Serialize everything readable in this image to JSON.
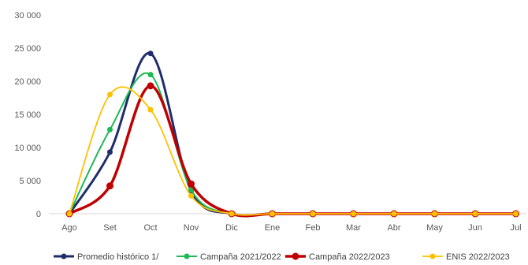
{
  "chart_data": {
    "type": "line",
    "categories": [
      "Ago",
      "Set",
      "Oct",
      "Nov",
      "Dic",
      "Ene",
      "Feb",
      "Mar",
      "Abr",
      "May",
      "Jun",
      "Jul"
    ],
    "ylim": [
      0,
      30000
    ],
    "yticks": [
      0,
      5000,
      10000,
      15000,
      20000,
      25000,
      30000
    ],
    "ytick_labels": [
      "0",
      "5 000",
      "10 000",
      "15 000",
      "20 000",
      "25 000",
      "30 000"
    ],
    "grid": false,
    "legend_position": "bottom",
    "series": [
      {
        "name": "Promedio histórico 1/",
        "color": "#1f2d6b",
        "values": [
          0,
          9300,
          24200,
          3500,
          0,
          0,
          0,
          0,
          0,
          0,
          0,
          0
        ]
      },
      {
        "name": "Campaña 2021/2022",
        "color": "#1db954",
        "values": [
          0,
          12700,
          21000,
          3600,
          0,
          0,
          0,
          0,
          0,
          0,
          0,
          0
        ]
      },
      {
        "name": "Campaña 2022/2023",
        "color": "#c00000",
        "values": [
          0,
          4200,
          19300,
          4500,
          0,
          0,
          0,
          0,
          0,
          0,
          0,
          0
        ]
      },
      {
        "name": "ENIS 2022/2023",
        "color": "#ffc000",
        "values": [
          0,
          18000,
          15700,
          2700,
          0,
          0,
          0,
          0,
          0,
          0,
          0,
          0
        ]
      }
    ]
  }
}
